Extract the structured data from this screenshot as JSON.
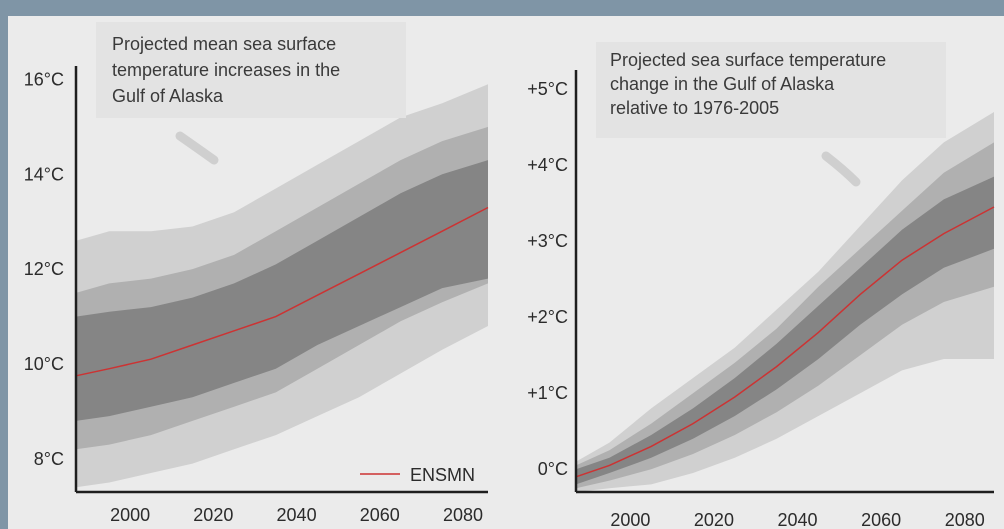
{
  "page": {
    "background": "#7f95a6",
    "panel_background": "#ebebeb"
  },
  "chart_data": [
    {
      "type": "area",
      "annotation": [
        "Projected mean sea surface",
        "temperature increases in the",
        "Gulf of Alaska"
      ],
      "xlabel": "",
      "ylabel": "",
      "xlim": [
        1987,
        2086
      ],
      "ylim": [
        7.3,
        16.2
      ],
      "xticks": [
        2000,
        2020,
        2040,
        2060,
        2080
      ],
      "xtick_labels": [
        "2000",
        "2020",
        "2040",
        "2060",
        "2080"
      ],
      "yticks": [
        8,
        10,
        12,
        14,
        16
      ],
      "ytick_labels": [
        "8°C",
        "10°C",
        "12°C",
        "14°C",
        "16°C"
      ],
      "legend": {
        "placement": "bottom-right",
        "label": "ENSMN",
        "color": "#cc3333"
      },
      "colors": {
        "outer": "#d0d0d0",
        "middle": "#b0b0b0",
        "inner": "#858585",
        "line": "#cc3333"
      },
      "x": [
        1987,
        1995,
        2005,
        2015,
        2025,
        2035,
        2045,
        2055,
        2065,
        2075,
        2086
      ],
      "series": [
        {
          "name": "ENSMN",
          "values": [
            9.75,
            9.9,
            10.1,
            10.4,
            10.7,
            11.0,
            11.45,
            11.9,
            12.35,
            12.8,
            13.3
          ]
        }
      ],
      "bands": [
        {
          "level": "outer",
          "lower": [
            7.4,
            7.5,
            7.7,
            7.9,
            8.2,
            8.5,
            8.9,
            9.3,
            9.8,
            10.3,
            10.8
          ],
          "upper": [
            12.6,
            12.8,
            12.8,
            12.9,
            13.2,
            13.7,
            14.2,
            14.7,
            15.2,
            15.5,
            15.9
          ]
        },
        {
          "level": "middle",
          "lower": [
            8.2,
            8.3,
            8.5,
            8.8,
            9.1,
            9.4,
            9.9,
            10.4,
            10.9,
            11.3,
            11.7
          ],
          "upper": [
            11.5,
            11.7,
            11.8,
            12.0,
            12.3,
            12.8,
            13.3,
            13.8,
            14.3,
            14.7,
            15.0
          ]
        },
        {
          "level": "inner",
          "lower": [
            8.8,
            8.9,
            9.1,
            9.3,
            9.6,
            9.9,
            10.4,
            10.8,
            11.2,
            11.6,
            11.8
          ],
          "upper": [
            11.0,
            11.1,
            11.2,
            11.4,
            11.7,
            12.1,
            12.6,
            13.1,
            13.6,
            14.0,
            14.3
          ]
        }
      ]
    },
    {
      "type": "area",
      "annotation": [
        "Projected sea surface temperature",
        "change in the Gulf of Alaska",
        "relative to 1976-2005"
      ],
      "xlabel": "",
      "ylabel": "",
      "xlim": [
        1987,
        2087
      ],
      "ylim": [
        -0.3,
        5.2
      ],
      "xticks": [
        2000,
        2020,
        2040,
        2060,
        2080
      ],
      "xtick_labels": [
        "2000",
        "2020",
        "2040",
        "2060",
        "2080"
      ],
      "yticks": [
        0,
        1,
        2,
        3,
        4,
        5
      ],
      "ytick_labels": [
        "0°C",
        "+1°C",
        "+2°C",
        "+3°C",
        "+4°C",
        "+5°C"
      ],
      "colors": {
        "outer": "#d0d0d0",
        "middle": "#b0b0b0",
        "inner": "#858585",
        "line": "#cc3333"
      },
      "x": [
        1987,
        1995,
        2005,
        2015,
        2025,
        2035,
        2045,
        2055,
        2065,
        2075,
        2087
      ],
      "series": [
        {
          "name": "ENSMN",
          "values": [
            -0.1,
            0.05,
            0.3,
            0.6,
            0.95,
            1.35,
            1.8,
            2.3,
            2.75,
            3.1,
            3.45
          ]
        }
      ],
      "bands": [
        {
          "level": "outer",
          "lower": [
            -0.3,
            -0.25,
            -0.2,
            -0.05,
            0.15,
            0.4,
            0.7,
            1.0,
            1.3,
            1.45,
            1.45
          ],
          "upper": [
            0.1,
            0.35,
            0.8,
            1.2,
            1.6,
            2.1,
            2.6,
            3.2,
            3.8,
            4.3,
            4.7
          ]
        },
        {
          "level": "middle",
          "lower": [
            -0.25,
            -0.15,
            0.0,
            0.2,
            0.45,
            0.75,
            1.1,
            1.5,
            1.9,
            2.2,
            2.4
          ],
          "upper": [
            0.05,
            0.25,
            0.6,
            1.0,
            1.4,
            1.85,
            2.4,
            2.9,
            3.4,
            3.9,
            4.3
          ]
        },
        {
          "level": "inner",
          "lower": [
            -0.2,
            -0.05,
            0.15,
            0.4,
            0.7,
            1.05,
            1.45,
            1.9,
            2.3,
            2.65,
            2.9
          ],
          "upper": [
            0.0,
            0.15,
            0.45,
            0.8,
            1.2,
            1.65,
            2.15,
            2.65,
            3.15,
            3.55,
            3.85
          ]
        }
      ]
    }
  ]
}
